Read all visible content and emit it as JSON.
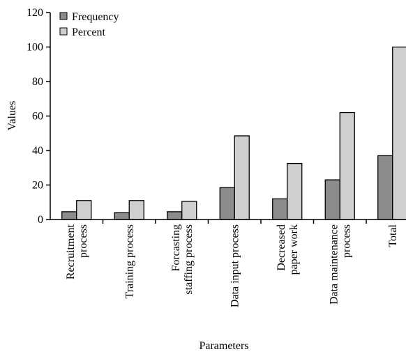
{
  "chart_data": {
    "type": "bar",
    "xlabel": "Parameters",
    "ylabel": "Values",
    "ylim": [
      0,
      120
    ],
    "yticks": [
      0,
      20,
      40,
      60,
      80,
      100,
      120
    ],
    "grid": false,
    "legend_position": "top-left",
    "categories": [
      [
        "Recruitment",
        "process"
      ],
      [
        "Training process"
      ],
      [
        "Forcasting",
        "staffing process"
      ],
      [
        "Data input process"
      ],
      [
        "Decreased",
        "paper work"
      ],
      [
        "Data maintenance",
        "process"
      ],
      [
        "Total"
      ]
    ],
    "series": [
      {
        "name": "Frequency",
        "color": "#8c8c8c",
        "values": [
          4.5,
          4,
          4.5,
          18.5,
          12,
          23,
          37
        ]
      },
      {
        "name": "Percent",
        "color": "#cfcfcf",
        "values": [
          11,
          11,
          10.5,
          48.5,
          32.5,
          62,
          100
        ]
      }
    ]
  }
}
